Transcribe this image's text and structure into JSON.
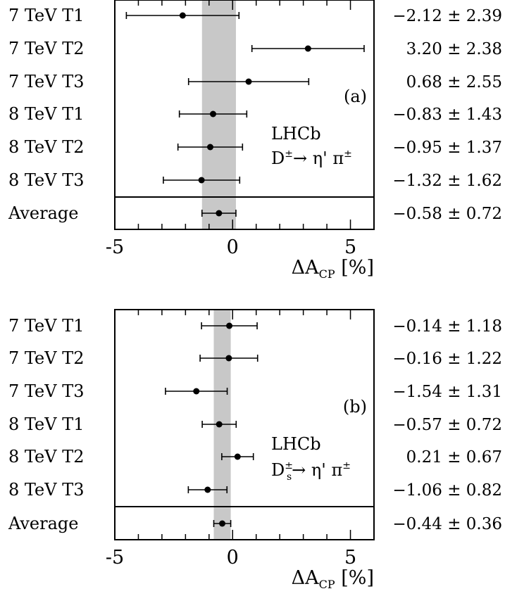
{
  "chart_data": [
    {
      "type": "scatter",
      "panel_label": "(a)",
      "experiment": "LHCb",
      "decay_main": "D",
      "decay_sup": "±",
      "decay_sub": "",
      "decay_rest": "→ η' π",
      "decay_rest_sup": "±",
      "xlabel_main": "ΔA",
      "xlabel_sub": "CP",
      "xlabel_unit": "[%]",
      "xlim": [
        -5,
        6
      ],
      "xticks": [
        "-5",
        "0",
        "5"
      ],
      "band": {
        "center": -0.58,
        "error": 0.72,
        "color": "#c8c8c8"
      },
      "rows": [
        {
          "label": "7 TeV T1",
          "value": -2.12,
          "error": 2.39,
          "text": "−2.12 ± 2.39"
        },
        {
          "label": "7 TeV T2",
          "value": 3.2,
          "error": 2.38,
          "text": "3.20 ± 2.38"
        },
        {
          "label": "7 TeV T3",
          "value": 0.68,
          "error": 2.55,
          "text": "0.68 ± 2.55"
        },
        {
          "label": "8 TeV T1",
          "value": -0.83,
          "error": 1.43,
          "text": "−0.83 ± 1.43"
        },
        {
          "label": "8 TeV T2",
          "value": -0.95,
          "error": 1.37,
          "text": "−0.95 ± 1.37"
        },
        {
          "label": "8 TeV T3",
          "value": -1.32,
          "error": 1.62,
          "text": "−1.32 ± 1.62"
        },
        {
          "label": "Average",
          "value": -0.58,
          "error": 0.72,
          "text": "−0.58 ± 0.72",
          "average": true
        }
      ]
    },
    {
      "type": "scatter",
      "panel_label": "(b)",
      "experiment": "LHCb",
      "decay_main": "D",
      "decay_sup": "±",
      "decay_sub": "s",
      "decay_rest": "→ η' π",
      "decay_rest_sup": "±",
      "xlabel_main": "ΔA",
      "xlabel_sub": "CP",
      "xlabel_unit": "[%]",
      "xlim": [
        -5,
        6
      ],
      "xticks": [
        "-5",
        "0",
        "5"
      ],
      "band": {
        "center": -0.44,
        "error": 0.36,
        "color": "#c8c8c8"
      },
      "rows": [
        {
          "label": "7 TeV T1",
          "value": -0.14,
          "error": 1.18,
          "text": "−0.14 ± 1.18"
        },
        {
          "label": "7 TeV T2",
          "value": -0.16,
          "error": 1.22,
          "text": "−0.16 ± 1.22"
        },
        {
          "label": "7 TeV T3",
          "value": -1.54,
          "error": 1.31,
          "text": "−1.54 ± 1.31"
        },
        {
          "label": "8 TeV T1",
          "value": -0.57,
          "error": 0.72,
          "text": "−0.57 ± 0.72"
        },
        {
          "label": "8 TeV T2",
          "value": 0.21,
          "error": 0.67,
          "text": "0.21 ± 0.67"
        },
        {
          "label": "8 TeV T3",
          "value": -1.06,
          "error": 0.82,
          "text": "−1.06 ± 0.82"
        },
        {
          "label": "Average",
          "value": -0.44,
          "error": 0.36,
          "text": "−0.44 ± 0.36",
          "average": true
        }
      ]
    }
  ]
}
